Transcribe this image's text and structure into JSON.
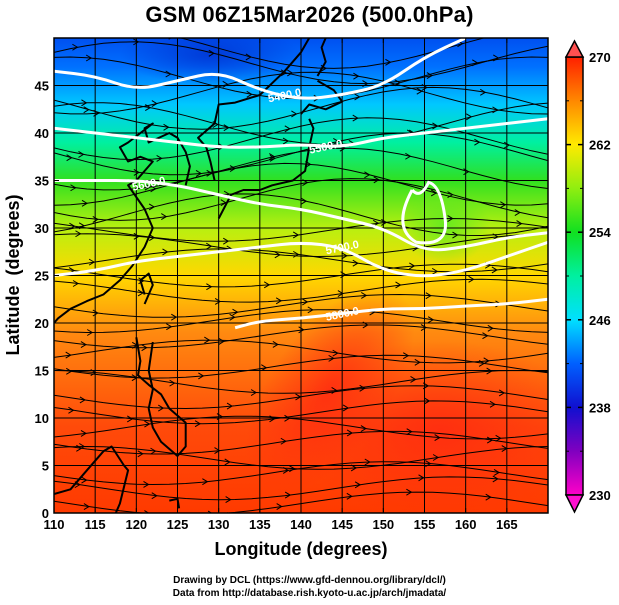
{
  "chart_data": {
    "type": "heatmap",
    "title": "GSM 06Z15Mar2026 (500.0hPa)",
    "xlabel": "Longitude (degrees)",
    "ylabel": "Latitude  (degrees)",
    "xlim": [
      110,
      170
    ],
    "ylim": [
      0,
      50
    ],
    "x_ticks": [
      110,
      115,
      120,
      125,
      130,
      135,
      140,
      145,
      150,
      155,
      160,
      165
    ],
    "y_ticks": [
      0,
      5,
      10,
      15,
      20,
      25,
      30,
      35,
      40,
      45
    ],
    "grid": true,
    "grid_step_degrees": 5,
    "shaded_field": "temperature (K)",
    "colorbar": {
      "ticks": [
        230,
        238,
        246,
        254,
        262,
        270
      ],
      "range": [
        230,
        270
      ],
      "extend": "both",
      "placement": "right",
      "colors": [
        {
          "value": 230,
          "color": "#ff00c8"
        },
        {
          "value": 234,
          "color": "#8000c0"
        },
        {
          "value": 238,
          "color": "#1010d0"
        },
        {
          "value": 242,
          "color": "#0060ff"
        },
        {
          "value": 246,
          "color": "#00e0ff"
        },
        {
          "value": 250,
          "color": "#00f0a0"
        },
        {
          "value": 254,
          "color": "#10e020"
        },
        {
          "value": 258,
          "color": "#90ee10"
        },
        {
          "value": 262,
          "color": "#ffea00"
        },
        {
          "value": 266,
          "color": "#ff8800"
        },
        {
          "value": 270,
          "color": "#ff2000"
        }
      ],
      "over_color": "#ff5050",
      "under_color": "#ff10d0"
    },
    "contours": [
      {
        "value": "5400.0",
        "label": "5400.0",
        "lon": [
          110,
          115,
          120,
          125,
          130,
          135,
          140,
          145,
          150,
          155,
          160
        ],
        "lat": [
          46.5,
          46,
          44.5,
          45.5,
          46.5,
          44.5,
          43.5,
          44,
          45,
          48,
          50
        ]
      },
      {
        "value": "5500.0",
        "label": "5500.0",
        "lon": [
          110,
          115,
          120,
          125,
          130,
          135,
          140,
          145,
          150,
          155,
          160,
          165,
          170
        ],
        "lat": [
          40.5,
          40,
          39.5,
          39,
          38.5,
          38.5,
          38.8,
          38.5,
          39.5,
          40,
          40.5,
          41,
          41.5
        ]
      },
      {
        "value": "5600.0",
        "label": "5600.0",
        "lon": [
          110,
          115,
          120,
          125,
          130,
          135,
          140,
          145,
          150,
          155,
          160,
          165,
          170
        ],
        "lat": [
          35,
          35,
          35,
          34.5,
          33.5,
          32.5,
          32,
          31,
          30,
          27.5,
          28,
          29,
          29.5
        ]
      },
      {
        "value": "5700.0",
        "label": "5700.0",
        "lon": [
          110,
          115,
          120,
          125,
          130,
          135,
          140,
          145,
          150,
          155,
          160,
          165,
          170
        ],
        "lat": [
          25,
          25.5,
          26.5,
          27,
          27.5,
          28,
          28.5,
          28,
          25.5,
          24.8,
          25.5,
          27,
          28.5
        ]
      },
      {
        "value": "5800.0",
        "label": "5800.0",
        "lon": [
          132,
          135,
          140,
          145,
          150,
          155,
          160,
          165,
          170
        ],
        "lat": [
          19.5,
          20.2,
          20.5,
          21,
          21.5,
          21.5,
          21.8,
          22,
          22.5
        ]
      }
    ],
    "vector_field": "streamlines"
  },
  "credits": {
    "line1": "Drawing by DCL (https://www.gfd-dennou.org/library/dcl/)",
    "line2": "Data from http://database.rish.kyoto-u.ac.jp/arch/jmadata/"
  }
}
